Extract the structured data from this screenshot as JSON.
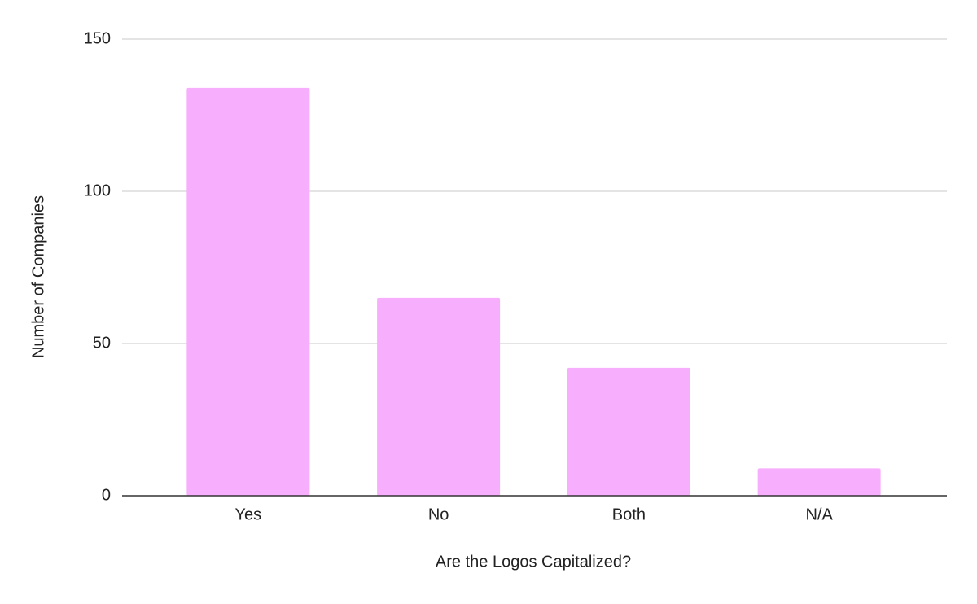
{
  "chart_data": {
    "type": "bar",
    "x_label": "Are the Logos Capitalized?",
    "y_label": "Number of Companies",
    "categories": [
      "Yes",
      "No",
      "Both",
      "N/A"
    ],
    "values": [
      134,
      65,
      42,
      9
    ],
    "color": "#f7aefc",
    "ylim": [
      0,
      150
    ],
    "yticks": [
      0,
      50,
      100,
      150
    ],
    "grid": true
  }
}
